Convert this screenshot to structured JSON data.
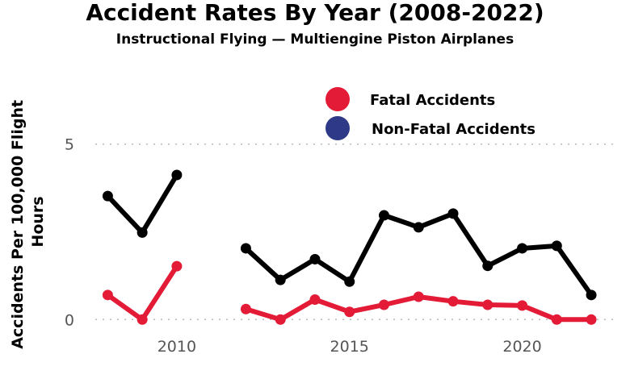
{
  "chart_data": {
    "type": "line",
    "title": "Accident Rates By Year (2008-2022)",
    "subtitle": "Instructional Flying — Multiengine Piston Airplanes",
    "ylabel": "Accidents Per 100,000 Flight Hours",
    "xlabel": "",
    "x": [
      2008,
      2009,
      2010,
      2011,
      2012,
      2013,
      2014,
      2015,
      2016,
      2017,
      2018,
      2019,
      2020,
      2021,
      2022
    ],
    "xlim": [
      2007.5,
      2022.7
    ],
    "ylim": [
      -0.2,
      5.2
    ],
    "x_ticks": [
      "2010",
      "2015",
      "2020"
    ],
    "y_ticks": [
      "0",
      "5"
    ],
    "grid": "horizontal-dotted",
    "legend_position": "top-right",
    "legend": [
      {
        "label": "Fatal Accidents",
        "color": "#e31b36"
      },
      {
        "label": "Non-Fatal Accidents",
        "color": "#2e3a87"
      }
    ],
    "series": [
      {
        "name": "Non-Fatal Accidents",
        "line_color": "#000000",
        "values": [
          3.52,
          2.48,
          4.12,
          null,
          2.03,
          1.13,
          1.72,
          1.08,
          2.97,
          2.63,
          3.02,
          1.53,
          2.03,
          2.1,
          0.7
        ]
      },
      {
        "name": "Fatal Accidents",
        "line_color": "#e31b36",
        "values": [
          0.7,
          0.0,
          1.52,
          null,
          0.3,
          0.0,
          0.57,
          0.22,
          0.42,
          0.65,
          0.52,
          0.42,
          0.4,
          0.0,
          0.0
        ]
      }
    ]
  }
}
